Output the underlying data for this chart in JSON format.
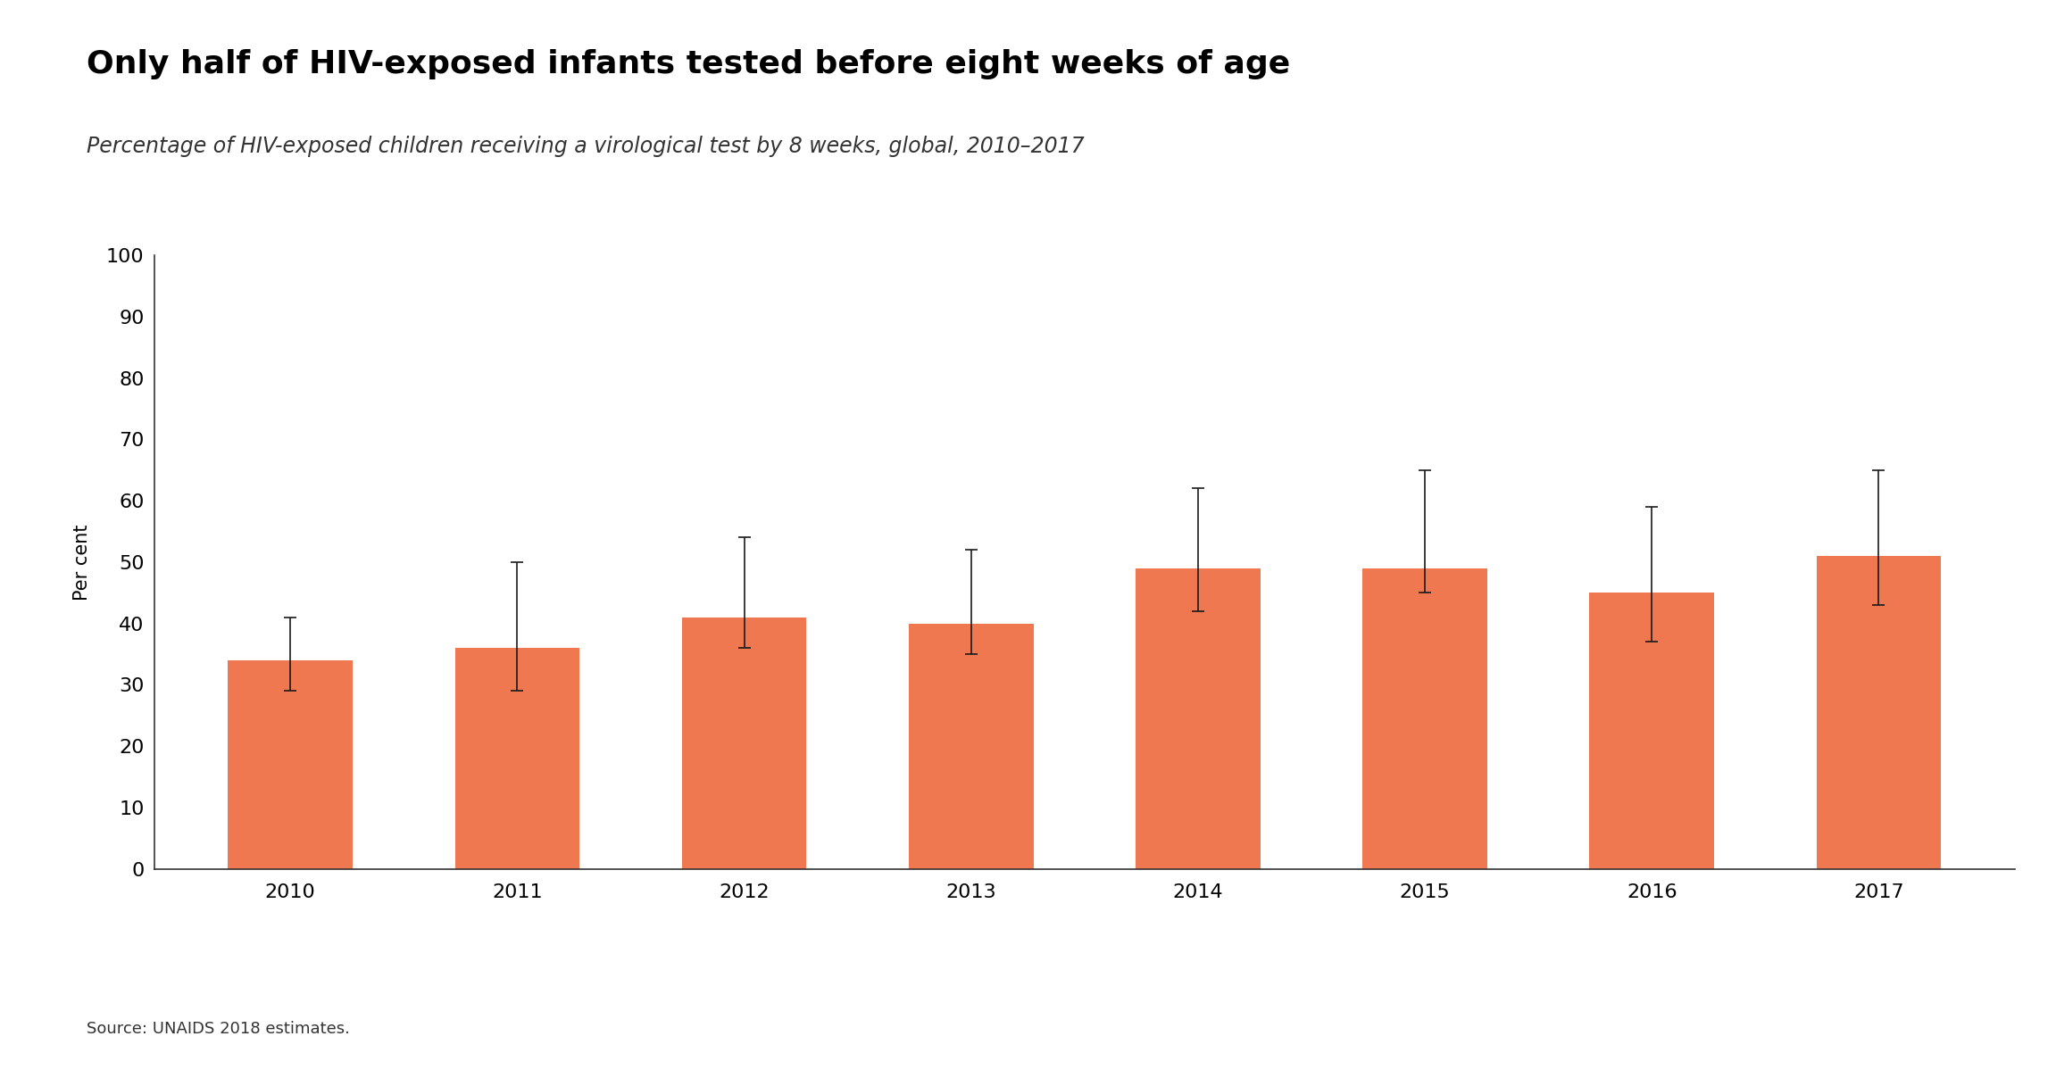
{
  "title": "Only half of HIV-exposed infants tested before eight weeks of age",
  "subtitle": "Percentage of HIV-exposed children receiving a virological test by 8 weeks, global, 2010–2017",
  "ylabel": "Per cent",
  "source": "Source: UNAIDS 2018 estimates.",
  "categories": [
    "2010",
    "2011",
    "2012",
    "2013",
    "2014",
    "2015",
    "2016",
    "2017"
  ],
  "values": [
    34,
    36,
    41,
    40,
    49,
    49,
    45,
    51
  ],
  "error_low": [
    5,
    7,
    5,
    5,
    7,
    4,
    8,
    8
  ],
  "error_high": [
    7,
    14,
    13,
    12,
    13,
    16,
    14,
    14
  ],
  "bar_color": "#F07850",
  "error_color": "#1a1a1a",
  "ylim": [
    0,
    100
  ],
  "yticks": [
    0,
    10,
    20,
    30,
    40,
    50,
    60,
    70,
    80,
    90,
    100
  ],
  "background_color": "#ffffff",
  "title_fontsize": 26,
  "subtitle_fontsize": 17,
  "ylabel_fontsize": 15,
  "tick_fontsize": 16,
  "source_fontsize": 13
}
